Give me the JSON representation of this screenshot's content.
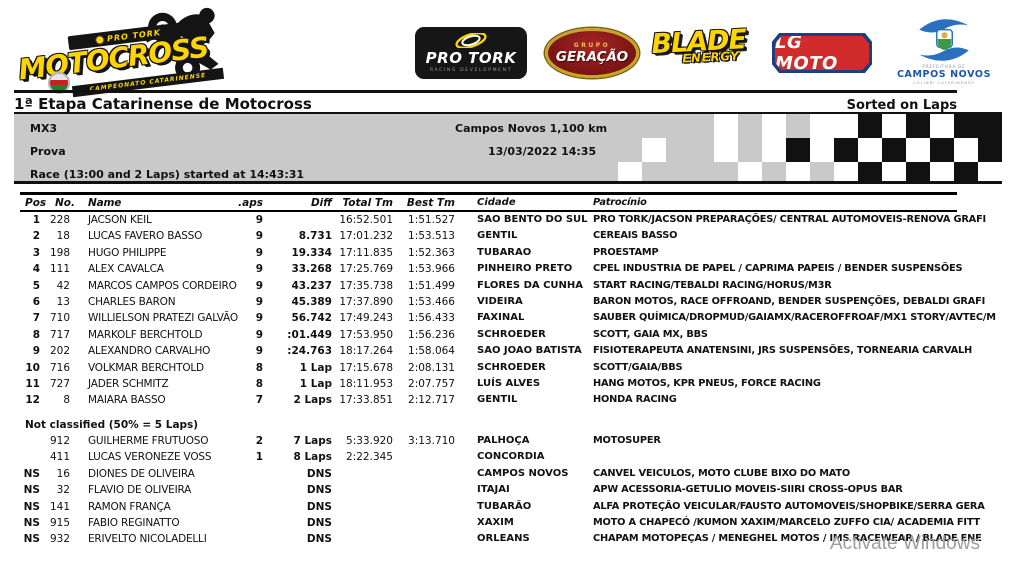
{
  "branding": {
    "motocross_logo": {
      "top": "PRO TORK",
      "word": "MOTOCROSS",
      "bottom": "CAMPEONATO CATARINENSE"
    },
    "protork": {
      "name": "PRO TORK",
      "sub": "RACING DEVELOPMENT"
    },
    "geracao": {
      "top": "GRUPO",
      "name": "GERAÇÃO"
    },
    "blade": {
      "name": "BLADE",
      "sub": "ENERGY"
    },
    "lgmoto": {
      "name": "LG MOTO"
    },
    "camposnovos": {
      "top": "PREFEITURA DE",
      "name": "CAMPOS NOVOS",
      "sub": "COLIBRI CATARINENSE"
    }
  },
  "header": {
    "title": "1ª Etapa Catarinense de Motocross",
    "sorted": "Sorted on Laps"
  },
  "info": {
    "class": "MX3",
    "track": "Campos Novos 1,100 km",
    "session": "Prova",
    "datetime": "13/03/2022 14:35",
    "race": "Race (13:00 and 2 Laps) started at 14:43:31"
  },
  "colors": {
    "accent_yellow": "#ffd400",
    "header_gray": "#c9c9c9",
    "lg_red": "#d22b2b",
    "lg_blue": "#1d3f7c",
    "campos_novos_blue": "#1a57a8",
    "geracao_red": "#7a1414",
    "geracao_gold": "#c9a227"
  },
  "flag_pattern": [
    [
      "g",
      "g",
      "g",
      "g",
      "g",
      "g",
      "w",
      "g",
      "w",
      "g",
      "w",
      "w",
      "b",
      "w",
      "b",
      "w",
      "b",
      "b"
    ],
    [
      "g",
      "g",
      "g",
      "w",
      "g",
      "g",
      "w",
      "g",
      "w",
      "b",
      "w",
      "b",
      "w",
      "b",
      "w",
      "b",
      "w",
      "b"
    ],
    [
      "g",
      "g",
      "w",
      "g",
      "g",
      "g",
      "g",
      "w",
      "g",
      "w",
      "g",
      "w",
      "b",
      "w",
      "b",
      "w",
      "b",
      "w"
    ]
  ],
  "table": {
    "columns": [
      "Pos",
      "No.",
      "Name",
      ".aps",
      "Diff",
      "Total Tm",
      "Best Tm",
      "Cidade",
      "Patrocínio"
    ],
    "classified": [
      [
        "1",
        "228",
        "JACSON KEIL",
        "9",
        "",
        "16:52.501",
        "1:51.527",
        "SAO BENTO DO SUL",
        "PRO TORK/JACSON PREPARAÇÕES/ CENTRAL AUTOMOVEIS-RENOVA GRAFI"
      ],
      [
        "2",
        "18",
        "LUCAS FAVERO BASSO",
        "9",
        "8.731",
        "17:01.232",
        "1:53.513",
        "GENTIL",
        "CEREAIS BASSO"
      ],
      [
        "3",
        "198",
        "HUGO PHILIPPE",
        "9",
        "19.334",
        "17:11.835",
        "1:52.363",
        "TUBARAO",
        "PROESTAMP"
      ],
      [
        "4",
        "111",
        "ALEX CAVALCA",
        "9",
        "33.268",
        "17:25.769",
        "1:53.966",
        "PINHEIRO PRETO",
        "CPEL INDUSTRIA DE PAPEL / CAPRIMA PAPEIS / BENDER SUSPENSÕES"
      ],
      [
        "5",
        "42",
        "MARCOS CAMPOS CORDEIRO",
        "9",
        "43.237",
        "17:35.738",
        "1:51.499",
        "FLORES DA CUNHA",
        "START RACING/TEBALDI RACING/HORUS/M3R"
      ],
      [
        "6",
        "13",
        "CHARLES BARON",
        "9",
        "45.389",
        "17:37.890",
        "1:53.466",
        "VIDEIRA",
        "BARON MOTOS, RACE OFFROAND, BENDER SUSPENÇÕES, DEBALDI GRAFI"
      ],
      [
        "7",
        "710",
        "WILLIELSON PRATEZI GALVÃO",
        "9",
        "56.742",
        "17:49.243",
        "1:56.433",
        "FAXINAL",
        "SAUBER QUÍMICA/DROPMUD/GAIAMX/RACEROFFROAF/MX1 STORY/AVTEC/M"
      ],
      [
        "8",
        "717",
        "MARKOLF BERCHTOLD",
        "9",
        ":01.449",
        "17:53.950",
        "1:56.236",
        "SCHROEDER",
        "SCOTT, GAIA MX, BBS"
      ],
      [
        "9",
        "202",
        "ALEXANDRO CARVALHO",
        "9",
        ":24.763",
        "18:17.264",
        "1:58.064",
        "SAO JOAO BATISTA",
        "FISIOTERAPEUTA ANATENSINI, JRS SUSPENSÕES, TORNEARIA CARVALH"
      ],
      [
        "10",
        "716",
        "VOLKMAR BERCHTOLD",
        "8",
        "1 Lap",
        "17:15.678",
        "2:08.131",
        "SCHROEDER",
        "SCOTT/GAIA/BBS"
      ],
      [
        "11",
        "727",
        "JADER SCHMITZ",
        "8",
        "1 Lap",
        "18:11.953",
        "2:07.757",
        "LUÍS ALVES",
        "HANG MOTOS, KPR PNEUS, FORCE RACING"
      ],
      [
        "12",
        "8",
        "MAIARA BASSO",
        "7",
        "2 Laps",
        "17:33.851",
        "2:12.717",
        "GENTIL",
        "HONDA RACING"
      ]
    ],
    "not_classified_label": "Not classified (50% = 5 Laps)",
    "not_classified": [
      [
        "",
        "912",
        "GUILHERME FRUTUOSO",
        "2",
        "7 Laps",
        "5:33.920",
        "3:13.710",
        "PALHOÇA",
        "MOTOSUPER"
      ],
      [
        "",
        "411",
        "LUCAS VERONEZE VOSS",
        "1",
        "8 Laps",
        "2:22.345",
        "",
        "CONCORDIA",
        ""
      ],
      [
        "NS",
        "16",
        "DIONES DE OLIVEIRA",
        "",
        "DNS",
        "",
        "",
        "CAMPOS NOVOS",
        "CANVEL VEICULOS, MOTO CLUBE BIXO DO MATO"
      ],
      [
        "NS",
        "32",
        "FLAVIO DE OLIVEIRA",
        "",
        "DNS",
        "",
        "",
        "ITAJAI",
        "APW ACESSORIA-GETULIO MOVEIS-SIIRI CROSS-OPUS BAR"
      ],
      [
        "NS",
        "141",
        "RAMON FRANÇA",
        "",
        "DNS",
        "",
        "",
        "TUBARÃO",
        "ALFA PROTEÇÃO VEICULAR/FAUSTO AUTOMOVEIS/SHOPBIKE/SERRA GERA"
      ],
      [
        "NS",
        "915",
        "FABIO REGINATTO",
        "",
        "DNS",
        "",
        "",
        "XAXIM",
        "MOTO A CHAPECÓ /KUMON XAXIM/MARCELO ZUFFO CIA/ ACADEMIA FITT"
      ],
      [
        "NS",
        "932",
        "ERIVELTO NICOLADELLI",
        "",
        "DNS",
        "",
        "",
        "ORLEANS",
        "CHAPAM MOTOPEÇAS / MENEGHEL MOTOS / IMS RACEWEAR / BLADE ENE"
      ]
    ]
  },
  "watermark": "Activate Windows"
}
